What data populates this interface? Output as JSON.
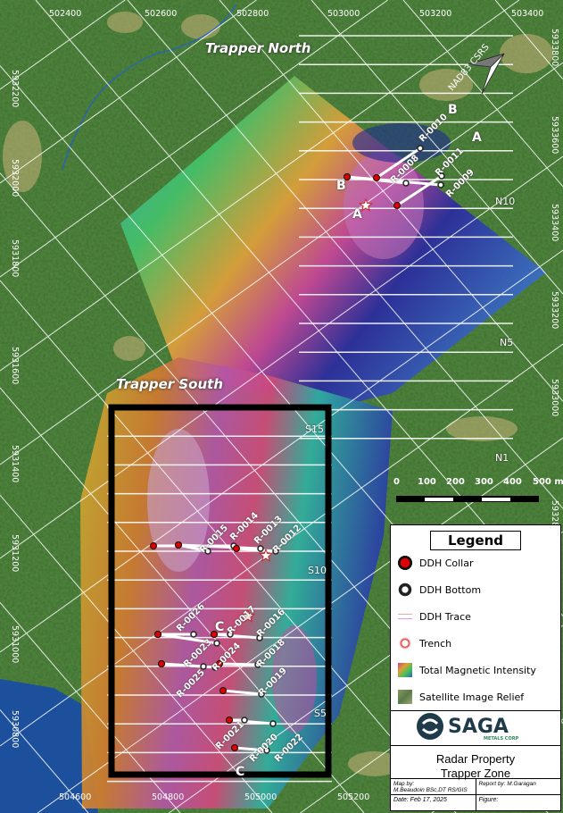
{
  "map": {
    "zones": [
      "Trapper North",
      "Trapper South"
    ],
    "easting_labels_top": [
      "502400",
      "502600",
      "502800",
      "503000",
      "503200",
      "503400"
    ],
    "easting_labels_bottom": [
      "504600",
      "504800",
      "505000",
      "505200"
    ],
    "northing_labels_left": [
      "5932200",
      "5932000",
      "5931800",
      "5931600",
      "5931400",
      "5931200",
      "5931000",
      "5930800"
    ],
    "northing_labels_right": [
      "5933800",
      "5933600",
      "5933400",
      "5933200",
      "5933000",
      "59328"
    ],
    "section_lines": [
      "N10",
      "N5",
      "N1",
      "S15",
      "S10",
      "S5"
    ],
    "section_letters": [
      "B",
      "A",
      "B",
      "A",
      "C",
      "C"
    ],
    "datum": "NAD83 CSRS",
    "north_holes": [
      "R-0010",
      "R-0008",
      "R-0011",
      "R-0009"
    ],
    "south_holes": [
      "R-0015",
      "R-0014",
      "R-0013",
      "R-0012",
      "R-0026",
      "R-0017",
      "R-0016",
      "R-0023",
      "R-0024",
      "R-0018",
      "R-0025",
      "R-0019",
      "R-0021",
      "R-0020",
      "R-0022"
    ],
    "scale": {
      "ticks": [
        "0",
        "100",
        "200",
        "300",
        "400",
        "500 m"
      ]
    }
  },
  "legend": {
    "title": "Legend",
    "items": [
      {
        "label": "DDH Collar",
        "icon": "red-dot-icon"
      },
      {
        "label": "DDH Bottom",
        "icon": "ring-icon"
      },
      {
        "label": "DDH Trace",
        "icon": "line-icon"
      },
      {
        "label": "Trench",
        "icon": "star-icon"
      },
      {
        "label": "Total Magnetic Intensity",
        "icon": "tmi-swatch"
      },
      {
        "label": "Satellite Image  Relief",
        "icon": "satellite-swatch"
      }
    ]
  },
  "title_block": {
    "company": "SAGA",
    "company_sub": "METALS CORP",
    "project_line1": "Radar Property",
    "project_line2": "Trapper Zone",
    "map_by": "Map by:",
    "map_by_name": "M.Beaudoin BSc,DT RS/GIS",
    "report_by": "Report by: M.Garagan",
    "date": "Date: Feb 17, 2025",
    "figure": "Figure:"
  },
  "colors": {
    "collar": "#e00000",
    "lake": "#1c4f9c",
    "brand": "#1f3b4a",
    "brand_green": "#2e8a5a"
  }
}
